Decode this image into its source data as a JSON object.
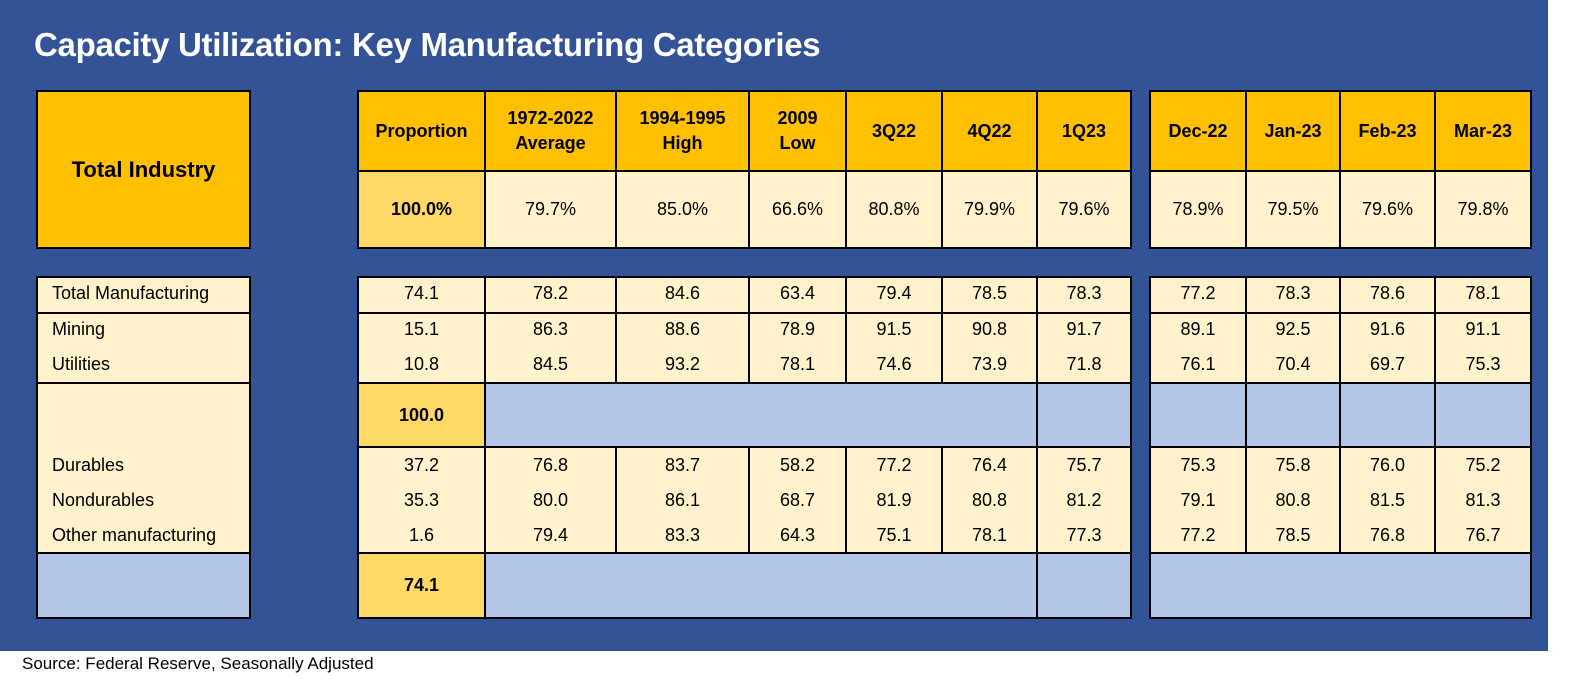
{
  "title": "Capacity Utilization: Key Manufacturing Categories",
  "source": "Source: Federal Reserve, Seasonally Adjusted",
  "colors": {
    "background": "#325496",
    "header": "#ffc000",
    "proportion": "#ffd966",
    "cell": "#fff2cc",
    "blank": "#b4c6e7"
  },
  "chart_data": {
    "type": "table",
    "title": "Capacity Utilization: Key Manufacturing Categories",
    "total_industry_label": "Total Industry",
    "columns": [
      "Proportion",
      "1972-2022 Average",
      "1994-1995 High",
      "2009 Low",
      "3Q22",
      "4Q22",
      "1Q23",
      "Dec-22",
      "Jan-23",
      "Feb-23",
      "Mar-23"
    ],
    "column_lines": [
      [
        "Proportion"
      ],
      [
        "1972-2022",
        "Average"
      ],
      [
        "1994-1995",
        "High"
      ],
      [
        "2009",
        "Low"
      ],
      [
        "3Q22"
      ],
      [
        "4Q22"
      ],
      [
        "1Q23"
      ],
      [
        "Dec-22"
      ],
      [
        "Jan-23"
      ],
      [
        "Feb-23"
      ],
      [
        "Mar-23"
      ]
    ],
    "total_industry": [
      "100.0%",
      "79.7%",
      "85.0%",
      "66.6%",
      "80.8%",
      "79.9%",
      "79.6%",
      "78.9%",
      "79.5%",
      "79.6%",
      "79.8%"
    ],
    "rows": [
      {
        "label": "Total Manufacturing",
        "values": [
          "74.1",
          "78.2",
          "84.6",
          "63.4",
          "79.4",
          "78.5",
          "78.3",
          "77.2",
          "78.3",
          "78.6",
          "78.1"
        ]
      },
      {
        "label": "Mining",
        "values": [
          "15.1",
          "86.3",
          "88.6",
          "78.9",
          "91.5",
          "90.8",
          "91.7",
          "89.1",
          "92.5",
          "91.6",
          "91.1"
        ]
      },
      {
        "label": "Utilities",
        "values": [
          "10.8",
          "84.5",
          "93.2",
          "78.1",
          "74.6",
          "73.9",
          "71.8",
          "76.1",
          "70.4",
          "69.7",
          "75.3"
        ]
      },
      {
        "label": "Durables",
        "values": [
          "37.2",
          "76.8",
          "83.7",
          "58.2",
          "77.2",
          "76.4",
          "75.7",
          "75.3",
          "75.8",
          "76.0",
          "75.2"
        ]
      },
      {
        "label": "Nondurables",
        "values": [
          "35.3",
          "80.0",
          "86.1",
          "68.7",
          "81.9",
          "80.8",
          "81.2",
          "79.1",
          "80.8",
          "81.5",
          "81.3"
        ]
      },
      {
        "label": "Other manufacturing",
        "values": [
          "1.6",
          "79.4",
          "83.3",
          "64.3",
          "75.1",
          "78.1",
          "77.3",
          "77.2",
          "78.5",
          "76.8",
          "76.7"
        ]
      }
    ],
    "proportion_subtotals": [
      "100.0",
      "74.1"
    ]
  }
}
